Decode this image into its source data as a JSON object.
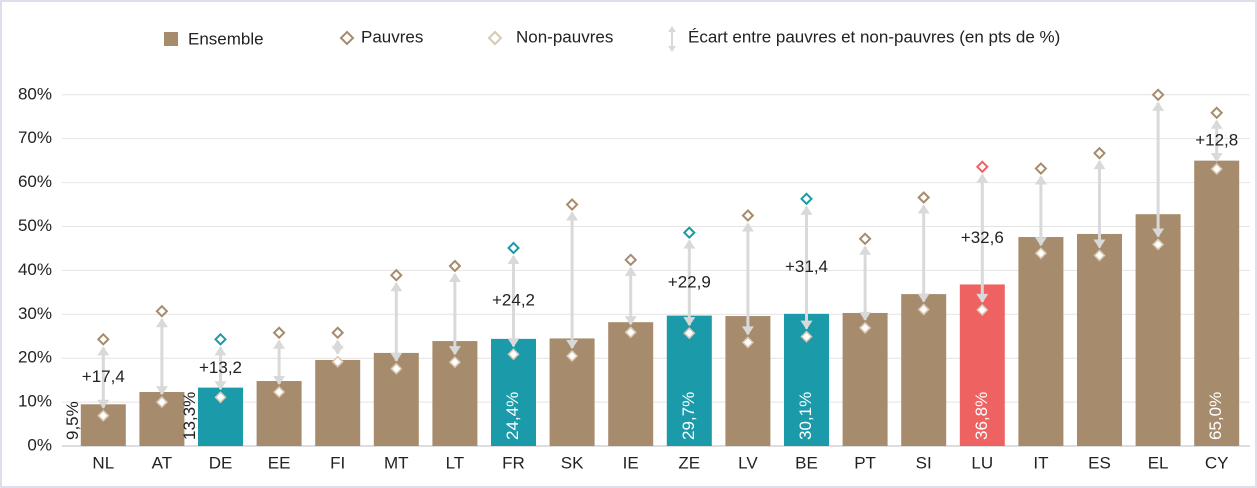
{
  "chart_data": {
    "type": "bar",
    "categories": [
      "NL",
      "AT",
      "DE",
      "EE",
      "FI",
      "MT",
      "LT",
      "FR",
      "SK",
      "IE",
      "ZE",
      "LV",
      "BE",
      "PT",
      "SI",
      "LU",
      "IT",
      "ES",
      "EL",
      "CY"
    ],
    "series": [
      {
        "name": "Ensemble",
        "color": "#a68b6c",
        "colors": [
          "#a68b6c",
          "#a68b6c",
          "#1b9aaa",
          "#a68b6c",
          "#a68b6c",
          "#a68b6c",
          "#a68b6c",
          "#1b9aaa",
          "#a68b6c",
          "#a68b6c",
          "#1b9aaa",
          "#a68b6c",
          "#1b9aaa",
          "#a68b6c",
          "#a68b6c",
          "#ef6262",
          "#a68b6c",
          "#a68b6c",
          "#a68b6c",
          "#a68b6c"
        ],
        "values": [
          9.5,
          12.3,
          13.3,
          14.8,
          19.6,
          21.2,
          23.9,
          24.4,
          24.5,
          28.2,
          29.7,
          29.6,
          30.1,
          30.3,
          34.6,
          36.8,
          47.6,
          48.3,
          52.8,
          65.0
        ],
        "value_labels": [
          "9,5%",
          null,
          "13,3%",
          null,
          null,
          null,
          null,
          "24,4%",
          null,
          null,
          "29,7%",
          null,
          "30,1%",
          null,
          null,
          "36,8%",
          null,
          null,
          null,
          "65,0%"
        ]
      },
      {
        "name": "Pauvres",
        "color": "#a68b6c",
        "colors": [
          "#a68b6c",
          "#a68b6c",
          "#1b9aaa",
          "#a68b6c",
          "#a68b6c",
          "#a68b6c",
          "#a68b6c",
          "#1b9aaa",
          "#a68b6c",
          "#a68b6c",
          "#1b9aaa",
          "#a68b6c",
          "#1b9aaa",
          "#a68b6c",
          "#a68b6c",
          "#ef6262",
          "#a68b6c",
          "#a68b6c",
          "#a68b6c",
          "#a68b6c"
        ],
        "values": [
          24.3,
          30.7,
          24.3,
          25.8,
          25.8,
          38.9,
          41.0,
          45.1,
          55.0,
          42.4,
          48.6,
          52.5,
          56.3,
          47.2,
          56.6,
          63.6,
          63.2,
          66.7,
          80.0,
          75.9
        ]
      },
      {
        "name": "Non-pauvres",
        "color": "#d9c8b4",
        "values": [
          6.9,
          10.0,
          11.1,
          12.3,
          19.2,
          17.6,
          19.1,
          20.9,
          20.5,
          25.9,
          25.7,
          23.6,
          24.9,
          26.9,
          31.1,
          31.0,
          43.9,
          43.4,
          45.9,
          63.1
        ]
      }
    ],
    "gap": {
      "name": "Écart entre pauvres et non-pauvres (en pts de %)",
      "color": "#d9d9d9",
      "values": [
        17.4,
        null,
        13.2,
        null,
        null,
        null,
        null,
        24.2,
        null,
        null,
        22.9,
        null,
        31.4,
        null,
        null,
        32.6,
        null,
        null,
        null,
        12.8
      ],
      "value_labels": [
        "+17,4",
        null,
        "+13,2",
        null,
        null,
        null,
        null,
        "+24,2",
        null,
        null,
        "+22,9",
        null,
        "+31,4",
        null,
        null,
        "+32,6",
        null,
        null,
        null,
        "+12,8"
      ]
    },
    "ylim": [
      0,
      82
    ],
    "yticks": [
      {
        "value": 0,
        "label": "0%"
      },
      {
        "value": 10,
        "label": "10%"
      },
      {
        "value": 20,
        "label": "20%"
      },
      {
        "value": 30,
        "label": "30%"
      },
      {
        "value": 40,
        "label": "40%"
      },
      {
        "value": 50,
        "label": "50%"
      },
      {
        "value": 60,
        "label": "60%"
      },
      {
        "value": 70,
        "label": "70%"
      },
      {
        "value": 80,
        "label": "80%"
      }
    ],
    "grid": true
  }
}
